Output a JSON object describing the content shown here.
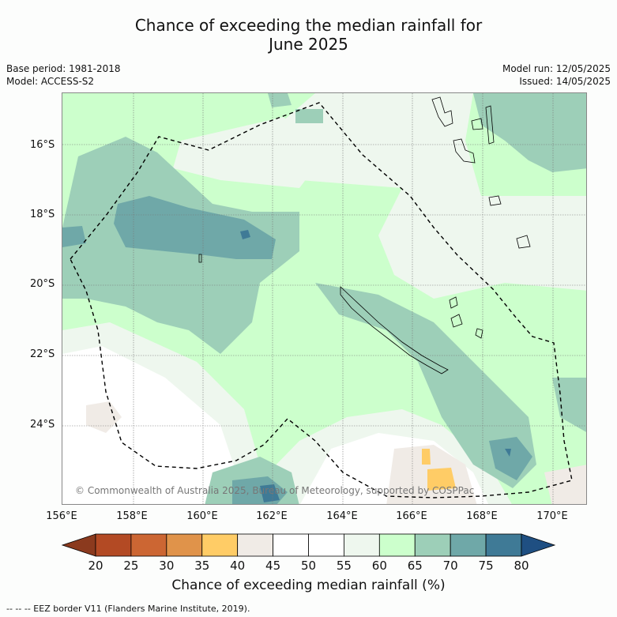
{
  "title_line1": "Chance of exceeding the median rainfall for",
  "title_line2": "June 2025",
  "meta_left": [
    "Base period: 1981-2018",
    "Model: ACCESS-S2"
  ],
  "meta_right": [
    "Model run: 12/05/2025",
    "Issued: 14/05/2025"
  ],
  "lat_labels": [
    "16°S",
    "18°S",
    "20°S",
    "22°S",
    "24°S"
  ],
  "lon_labels": [
    "156°E",
    "158°E",
    "160°E",
    "162°E",
    "164°E",
    "166°E",
    "168°E",
    "170°E"
  ],
  "copyright": "© Commonwealth of Australia 2025, Bureau of Meteorology, supported by COSPPac",
  "colorbar": {
    "ticks": [
      "20",
      "25",
      "30",
      "35",
      "40",
      "45",
      "50",
      "55",
      "60",
      "65",
      "70",
      "75",
      "80"
    ],
    "colors": [
      "#b34a24",
      "#cc6633",
      "#e0934a",
      "#ffcc66",
      "#f0ebe6",
      "#ffffff",
      "#ffffff",
      "#eef7ee",
      "#ccffcc",
      "#9dcfb8",
      "#6fa8a8",
      "#3f7a96"
    ],
    "low_color": "#8b3a1e",
    "high_color": "#1f4f82",
    "title": "Chance of exceeding median rainfall (%)"
  },
  "footnote": "--  --  -- EEZ border V11 (Flanders Marine Institute, 2019)."
}
